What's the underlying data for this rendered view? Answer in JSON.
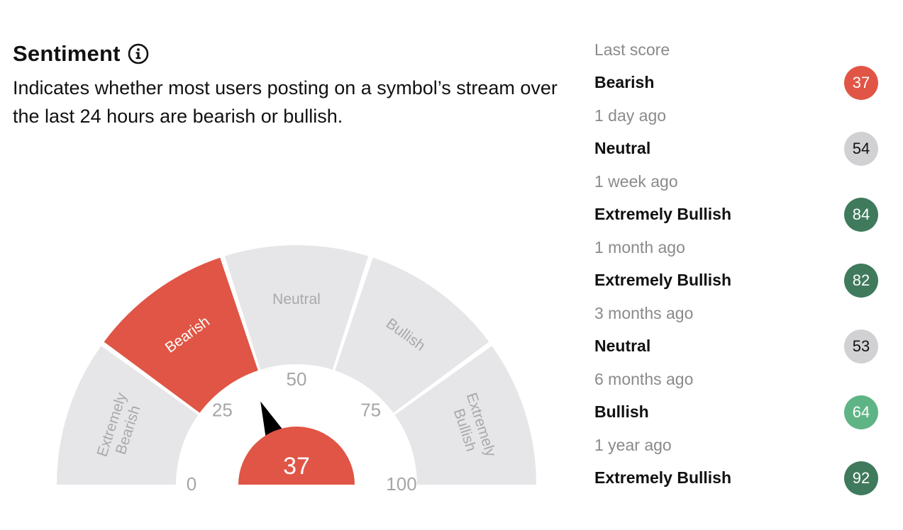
{
  "header": {
    "title": "Sentiment",
    "info_icon": "info-icon",
    "description": "Indicates whether most users posting on a symbol’s stream over the last 24 hours are bearish or bullish."
  },
  "gauge": {
    "min": 0,
    "max": 100,
    "value": 37,
    "value_label": "37",
    "ticks": [
      {
        "label": "0",
        "value": 0
      },
      {
        "label": "25",
        "value": 25
      },
      {
        "label": "50",
        "value": 50
      },
      {
        "label": "75",
        "value": 75
      },
      {
        "label": "100",
        "value": 100
      }
    ],
    "zones": [
      {
        "name": "Extremely Bearish",
        "lines": [
          "Extremely",
          "Bearish"
        ],
        "start": 0,
        "end": 20,
        "active": false
      },
      {
        "name": "Bearish",
        "lines": [
          "Bearish"
        ],
        "start": 20,
        "end": 40,
        "active": true
      },
      {
        "name": "Neutral",
        "lines": [
          "Neutral"
        ],
        "start": 40,
        "end": 60,
        "active": false
      },
      {
        "name": "Bullish",
        "lines": [
          "Bullish"
        ],
        "start": 60,
        "end": 80,
        "active": false
      },
      {
        "name": "Extremely Bullish",
        "lines": [
          "Extremely",
          "Bullish"
        ],
        "start": 80,
        "end": 100,
        "active": false
      }
    ],
    "colors": {
      "active": "#e05545",
      "inactive": "#e6e6e8",
      "inactive_text": "#a9a9ab",
      "active_text": "#ffffff",
      "tick_text": "#a6a6a6",
      "needle": "#000000"
    }
  },
  "history": [
    {
      "period": "Last score",
      "label": "Bearish",
      "score": "37",
      "color": "#e05545",
      "text_dark": false
    },
    {
      "period": "1 day ago",
      "label": "Neutral",
      "score": "54",
      "color": "#d1d1d3",
      "text_dark": true
    },
    {
      "period": "1 week ago",
      "label": "Extremely Bullish",
      "score": "84",
      "color": "#3f7a5c",
      "text_dark": false
    },
    {
      "period": "1 month ago",
      "label": "Extremely Bullish",
      "score": "82",
      "color": "#3f7a5c",
      "text_dark": false
    },
    {
      "period": "3 months ago",
      "label": "Neutral",
      "score": "53",
      "color": "#d1d1d3",
      "text_dark": true
    },
    {
      "period": "6 months ago",
      "label": "Bullish",
      "score": "64",
      "color": "#5fb486",
      "text_dark": false
    },
    {
      "period": "1 year ago",
      "label": "Extremely Bullish",
      "score": "92",
      "color": "#3f7a5c",
      "text_dark": false
    }
  ]
}
